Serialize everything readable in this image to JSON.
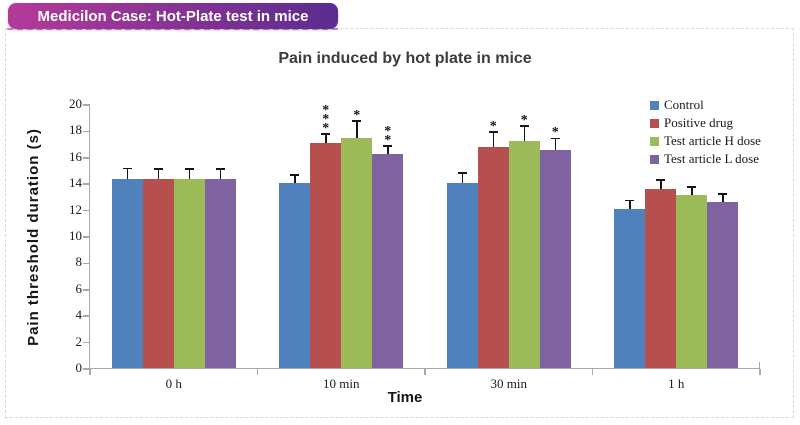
{
  "header": {
    "badge_label": "Medicilon Case: Hot-Plate test in mice",
    "badge_gradient": [
      "#b43a98",
      "#5a2c90"
    ]
  },
  "chart_data": {
    "type": "bar",
    "title": "Pain induced by hot plate in mice",
    "xlabel": "Time",
    "ylabel": "Pain threshold duration (s)",
    "ylim": [
      0,
      20
    ],
    "ytick_step": 2,
    "grid": false,
    "legend_position": "top-right",
    "error_bars": "upper",
    "categories": [
      "0 h",
      "10 min",
      "30 min",
      "1 h"
    ],
    "series": [
      {
        "name": "Control",
        "color": "#4f81bd",
        "values": [
          14.4,
          14.1,
          14.1,
          12.1
        ],
        "errors": [
          0.75,
          0.55,
          0.7,
          0.6
        ],
        "significance": [
          "",
          "",
          "",
          ""
        ]
      },
      {
        "name": "Positive drug",
        "color": "#b5504e",
        "values": [
          14.4,
          17.1,
          16.8,
          13.6
        ],
        "errors": [
          0.7,
          0.65,
          1.1,
          0.65
        ],
        "significance": [
          "",
          "***",
          "*",
          ""
        ]
      },
      {
        "name": "Test article H dose",
        "color": "#9dba59",
        "values": [
          14.4,
          17.5,
          17.3,
          13.2
        ],
        "errors": [
          0.7,
          1.25,
          1.05,
          0.55
        ],
        "significance": [
          "",
          "*",
          "*",
          ""
        ]
      },
      {
        "name": "Test article L dose",
        "color": "#7f63a1",
        "values": [
          14.4,
          16.3,
          16.6,
          12.65
        ],
        "errors": [
          0.7,
          0.55,
          0.8,
          0.55
        ],
        "significance": [
          "",
          "**",
          "*",
          ""
        ]
      }
    ]
  }
}
